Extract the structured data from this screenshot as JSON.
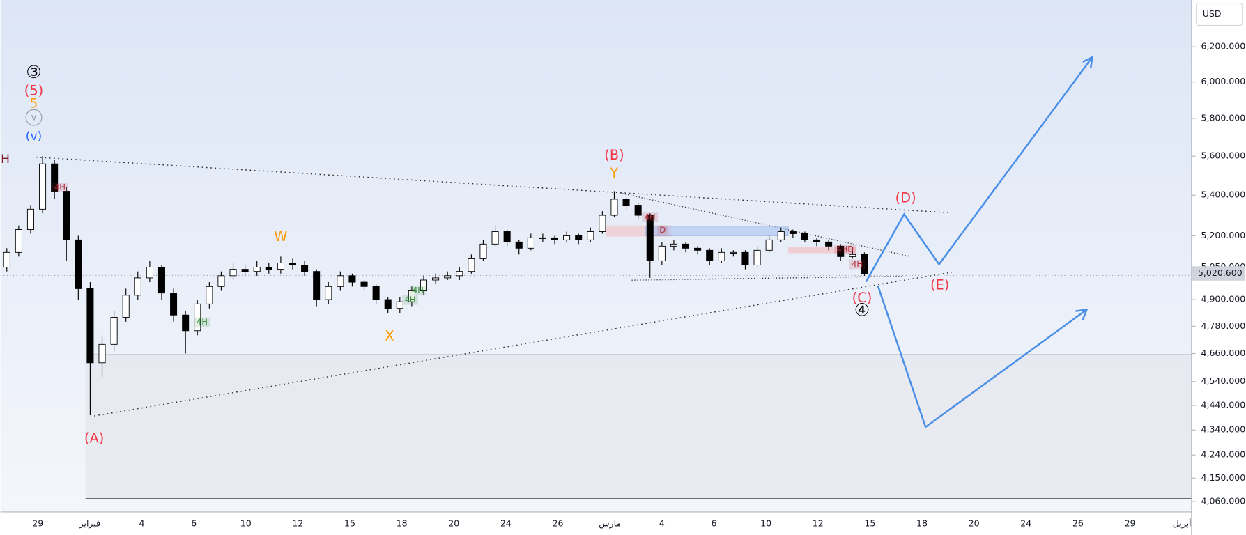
{
  "chart_data": {
    "type": "candlestick",
    "currency": "USD",
    "log_scale": true,
    "ylim": [
      4021,
      6476
    ],
    "yticks": [
      {
        "value": 6200,
        "label": "6,200.000"
      },
      {
        "value": 6000,
        "label": "6,000.000"
      },
      {
        "value": 5800,
        "label": "5,800.000"
      },
      {
        "value": 5600,
        "label": "5,600.000"
      },
      {
        "value": 5400,
        "label": "5,400.000"
      },
      {
        "value": 5200,
        "label": "5,200.000"
      },
      {
        "value": 5050,
        "label": "5,050.000"
      },
      {
        "value": 4900,
        "label": "4,900.000"
      },
      {
        "value": 4780,
        "label": "4,780.000"
      },
      {
        "value": 4660,
        "label": "4,660.000"
      },
      {
        "value": 4540,
        "label": "4,540.000"
      },
      {
        "value": 4440,
        "label": "4,440.000"
      },
      {
        "value": 4340,
        "label": "4,340.000"
      },
      {
        "value": 4240,
        "label": "4,240.000"
      },
      {
        "value": 4150,
        "label": "4,150.000"
      },
      {
        "value": 4060,
        "label": "4,060.000"
      }
    ],
    "last_price": {
      "value": 5020.6,
      "label": "5,020.600"
    },
    "categories": [
      "29",
      "فبراير",
      "4",
      "6",
      "10",
      "12",
      "15",
      "18",
      "20",
      "24",
      "26",
      "مارس",
      "4",
      "6",
      "10",
      "12",
      "15",
      "18",
      "20",
      "24",
      "26",
      "29",
      "أبريل"
    ],
    "up_color": "#ffffff",
    "down_color": "#000000",
    "candles": [
      [
        5050,
        5140,
        5030,
        5120
      ],
      [
        5120,
        5250,
        5100,
        5230
      ],
      [
        5230,
        5350,
        5210,
        5330
      ],
      [
        5330,
        5600,
        5310,
        5560
      ],
      [
        5560,
        5580,
        5380,
        5420
      ],
      [
        5420,
        5440,
        5080,
        5180
      ],
      [
        5180,
        5200,
        4900,
        4950
      ],
      [
        4950,
        4980,
        4400,
        4620
      ],
      [
        4620,
        4740,
        4560,
        4700
      ],
      [
        4700,
        4850,
        4670,
        4820
      ],
      [
        4820,
        4950,
        4800,
        4920
      ],
      [
        4920,
        5030,
        4900,
        5000
      ],
      [
        5000,
        5080,
        4980,
        5050
      ],
      [
        5050,
        5060,
        4900,
        4930
      ],
      [
        4930,
        4950,
        4800,
        4830
      ],
      [
        4830,
        4850,
        4660,
        4760
      ],
      [
        4760,
        4900,
        4740,
        4880
      ],
      [
        4880,
        4980,
        4860,
        4960
      ],
      [
        4960,
        5030,
        4940,
        5010
      ],
      [
        5010,
        5070,
        4990,
        5040
      ],
      [
        5040,
        5060,
        5010,
        5030
      ],
      [
        5030,
        5080,
        5010,
        5050
      ],
      [
        5050,
        5070,
        5020,
        5040
      ],
      [
        5040,
        5100,
        5020,
        5070
      ],
      [
        5070,
        5090,
        5040,
        5060
      ],
      [
        5060,
        5080,
        5010,
        5030
      ],
      [
        5030,
        5040,
        4870,
        4900
      ],
      [
        4900,
        4980,
        4880,
        4960
      ],
      [
        4960,
        5030,
        4940,
        5010
      ],
      [
        5010,
        5020,
        4960,
        4980
      ],
      [
        4980,
        4990,
        4940,
        4960
      ],
      [
        4960,
        4970,
        4880,
        4900
      ],
      [
        4900,
        4910,
        4840,
        4860
      ],
      [
        4860,
        4910,
        4840,
        4890
      ],
      [
        4890,
        4960,
        4870,
        4940
      ],
      [
        4940,
        5010,
        4920,
        4990
      ],
      [
        4990,
        5020,
        4970,
        5000
      ],
      [
        5000,
        5030,
        4990,
        5010
      ],
      [
        5010,
        5050,
        4990,
        5030
      ],
      [
        5030,
        5110,
        5020,
        5090
      ],
      [
        5090,
        5180,
        5080,
        5160
      ],
      [
        5160,
        5250,
        5150,
        5220
      ],
      [
        5220,
        5230,
        5150,
        5170
      ],
      [
        5170,
        5180,
        5110,
        5140
      ],
      [
        5140,
        5210,
        5130,
        5190
      ],
      [
        5190,
        5210,
        5170,
        5190
      ],
      [
        5190,
        5200,
        5160,
        5180
      ],
      [
        5180,
        5220,
        5170,
        5200
      ],
      [
        5200,
        5210,
        5160,
        5180
      ],
      [
        5180,
        5240,
        5170,
        5220
      ],
      [
        5220,
        5320,
        5210,
        5300
      ],
      [
        5300,
        5420,
        5290,
        5380
      ],
      [
        5380,
        5390,
        5330,
        5350
      ],
      [
        5350,
        5360,
        5280,
        5300
      ],
      [
        5300,
        5310,
        5000,
        5080
      ],
      [
        5080,
        5170,
        5060,
        5150
      ],
      [
        5150,
        5180,
        5130,
        5160
      ],
      [
        5160,
        5170,
        5120,
        5140
      ],
      [
        5140,
        5150,
        5110,
        5130
      ],
      [
        5130,
        5140,
        5060,
        5080
      ],
      [
        5080,
        5140,
        5070,
        5120
      ],
      [
        5120,
        5130,
        5100,
        5120
      ],
      [
        5120,
        5130,
        5040,
        5060
      ],
      [
        5060,
        5150,
        5050,
        5130
      ],
      [
        5130,
        5200,
        5120,
        5180
      ],
      [
        5180,
        5240,
        5170,
        5220
      ],
      [
        5220,
        5230,
        5190,
        5210
      ],
      [
        5210,
        5220,
        5170,
        5180
      ],
      [
        5180,
        5190,
        5150,
        5170
      ],
      [
        5170,
        5180,
        5130,
        5150
      ],
      [
        5150,
        5160,
        5080,
        5100
      ],
      [
        5100,
        5130,
        5090,
        5110
      ],
      [
        5110,
        5120,
        5010,
        5020
      ]
    ],
    "annotations": [
      {
        "text": "③",
        "color": "#000000"
      },
      {
        "text": "(5)",
        "color": "#f23645"
      },
      {
        "text": "5",
        "color": "#ff9800"
      },
      {
        "text": "v",
        "color": "#9598a1"
      },
      {
        "text": "(v)",
        "color": "#2962ff"
      },
      {
        "text": "H",
        "color": "#801922"
      },
      {
        "text": "(B)",
        "color": "#f23645"
      },
      {
        "text": "Y",
        "color": "#ff9800"
      },
      {
        "text": "W",
        "color": "#ff9800"
      },
      {
        "text": "X",
        "color": "#ff9800"
      },
      {
        "text": "(A)",
        "color": "#f23645"
      },
      {
        "text": "(C)",
        "color": "#f23645"
      },
      {
        "text": "④",
        "color": "#000000"
      },
      {
        "text": "(D)",
        "color": "#f23645"
      },
      {
        "text": "(E)",
        "color": "#f23645"
      }
    ],
    "tags": [
      {
        "text": "4H",
        "color": "#b22833"
      },
      {
        "text": "4H",
        "color": "#388e3c"
      },
      {
        "text": "4H",
        "color": "#388e3c"
      },
      {
        "text": "4H",
        "color": "#388e3c"
      },
      {
        "text": "4H",
        "color": "#b22833"
      },
      {
        "text": "D",
        "color": "#b22833"
      },
      {
        "text": "4HD",
        "color": "#b22833"
      },
      {
        "text": "4H",
        "color": "#b22833"
      }
    ]
  }
}
